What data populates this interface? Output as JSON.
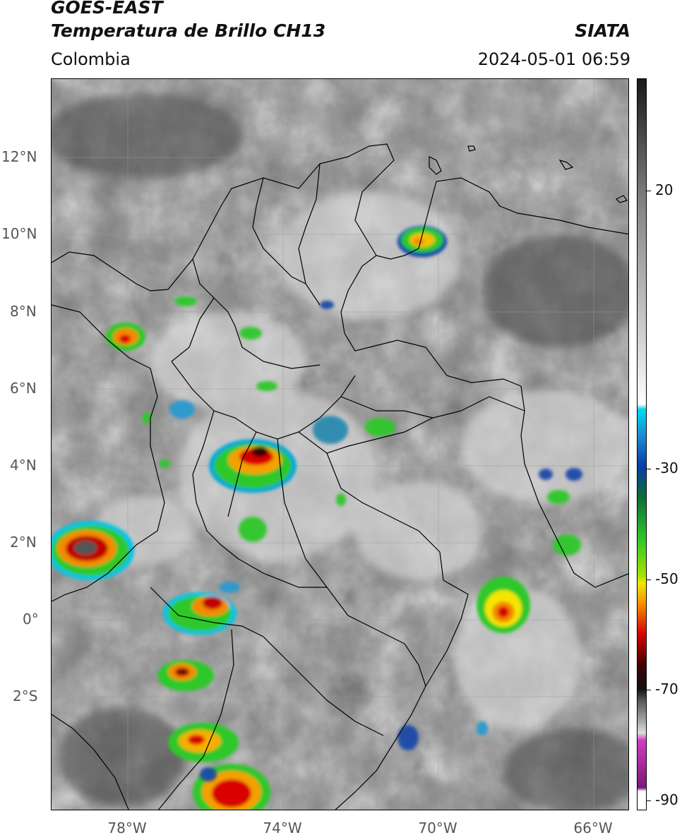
{
  "header": {
    "satellite": "GOES-EAST",
    "product": "Temperatura de Brillo CH13",
    "brand": "SIATA",
    "region": "Colombia",
    "datetime": "2024-05-01 06:59"
  },
  "map": {
    "lat_ticks": [
      "12°N",
      "10°N",
      "8°N",
      "6°N",
      "4°N",
      "2°N",
      "0°",
      "2°S"
    ],
    "lon_ticks": [
      "78°W",
      "74°W",
      "70°W",
      "66°W"
    ],
    "gridlines": true
  },
  "colorbar": {
    "tick_labels": [
      "20",
      "-30",
      "-50",
      "-70",
      "-90"
    ],
    "colors": {
      "warm_gray_top": "#1a1a1a",
      "cold_white": "#ffffff",
      "cyan": "#00d8f0",
      "blue": "#0a3da8",
      "green": "#2ec829",
      "yellow": "#f4e600",
      "orange": "#f48a00",
      "red": "#d90000",
      "darkred": "#4a0000",
      "magenta": "#d23cc0",
      "purple": "#7a1a7a"
    }
  }
}
